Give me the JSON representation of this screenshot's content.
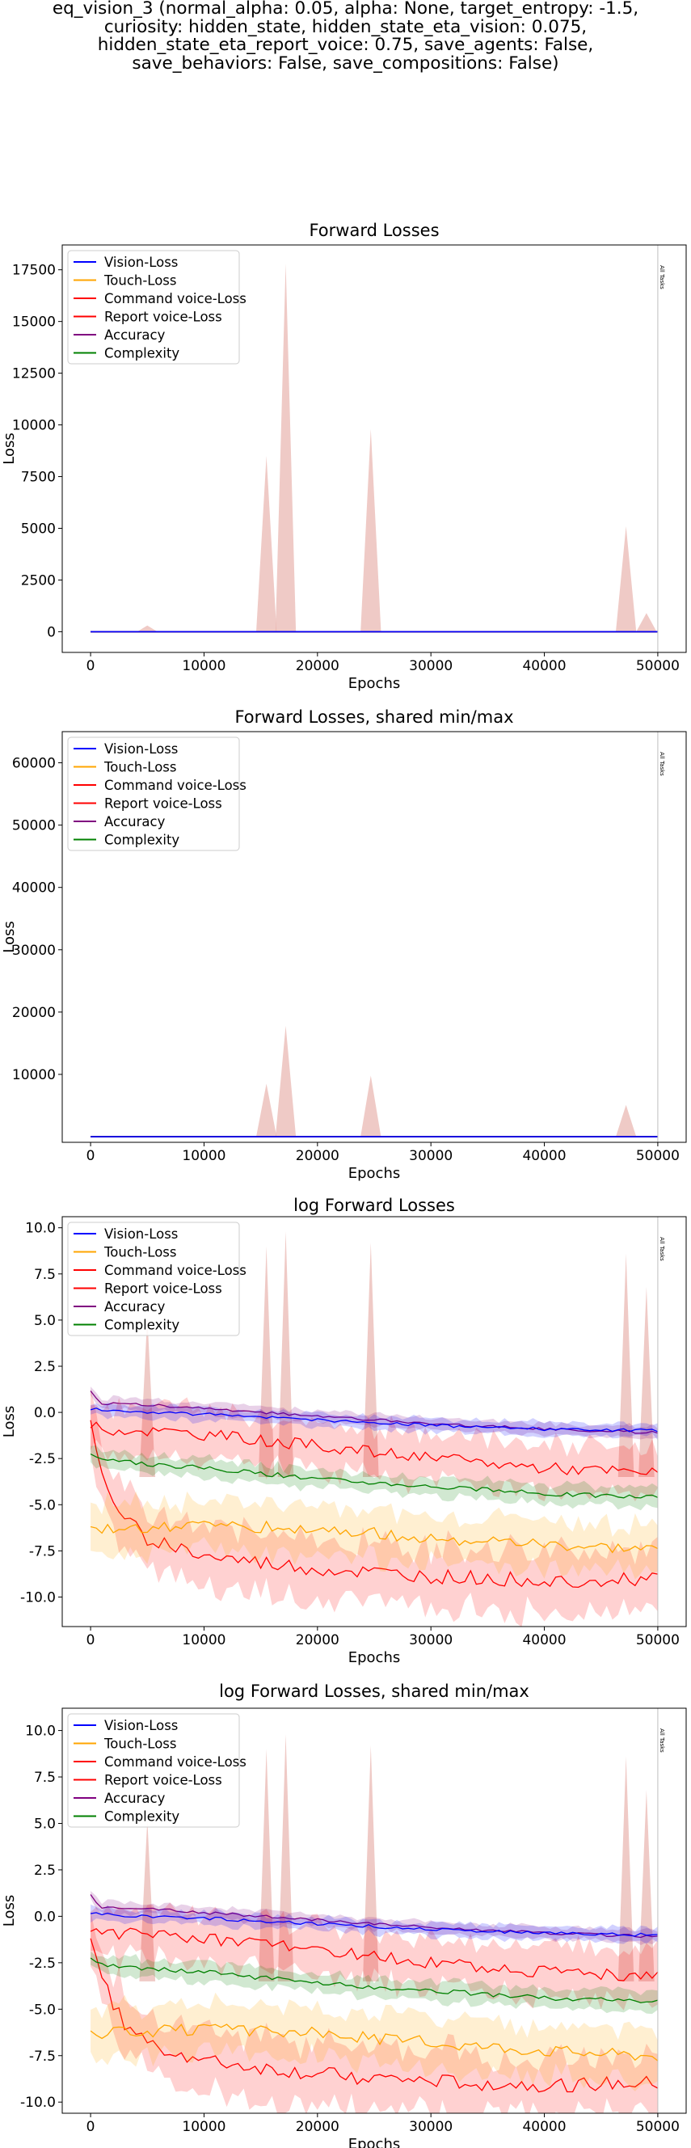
{
  "figure": {
    "title": "eq_vision_3 (normal_alpha: 0.05, alpha: None, target_entropy: -1.5,\ncuriosity: hidden_state, hidden_state_eta_vision: 0.075,\nhidden_state_eta_report_voice: 0.75, save_agents: False,\nsave_behaviors: False, save_compositions: False)"
  },
  "colors": {
    "vision": "#0000ff",
    "touch": "#ffa500",
    "command_voice": "#ff0000",
    "report_voice": "#ff0000",
    "accuracy": "#800080",
    "complexity": "#008000",
    "spikes": "#e8b4ae",
    "all_tasks_line": "#bfbfbf"
  },
  "chart_data": [
    {
      "type": "line",
      "title": "Forward Losses",
      "xlabel": "Epochs",
      "ylabel": "Loss",
      "xlim": [
        -2500,
        52500
      ],
      "ylim": [
        -1000,
        18700
      ],
      "xticks": [
        "0",
        "10000",
        "20000",
        "30000",
        "40000",
        "50000"
      ],
      "yticks": [
        "0",
        "2500",
        "5000",
        "7500",
        "10000",
        "12500",
        "15000",
        "17500"
      ],
      "legend": [
        "Vision-Loss",
        "Touch-Loss",
        "Command voice-Loss",
        "Report voice-Loss",
        "Accuracy",
        "Complexity"
      ],
      "legend_position": "upper left",
      "vline": {
        "x": 50000,
        "label": "All Tasks"
      },
      "series": [
        {
          "name": "Vision-Loss",
          "x": [
            0,
            50000
          ],
          "values": [
            0,
            0
          ]
        },
        {
          "name": "Touch-Loss",
          "x": [
            0,
            50000
          ],
          "values": [
            0,
            0
          ]
        },
        {
          "name": "Command voice-Loss",
          "x": [
            0,
            50000
          ],
          "values": [
            0,
            0
          ]
        },
        {
          "name": "Report voice-Loss",
          "x": [
            0,
            50000
          ],
          "values": [
            0,
            0
          ]
        },
        {
          "name": "Accuracy",
          "x": [
            0,
            50000
          ],
          "values": [
            0,
            0
          ]
        },
        {
          "name": "Complexity",
          "x": [
            0,
            50000
          ],
          "values": [
            0,
            0
          ]
        }
      ],
      "spikes": [
        {
          "x": 5000,
          "max": 300
        },
        {
          "x": 15500,
          "max": 8500
        },
        {
          "x": 17200,
          "max": 17800
        },
        {
          "x": 24700,
          "max": 9800
        },
        {
          "x": 47200,
          "max": 5100
        },
        {
          "x": 49000,
          "max": 900
        }
      ]
    },
    {
      "type": "line",
      "title": "Forward Losses, shared min/max",
      "xlabel": "Epochs",
      "ylabel": "Loss",
      "xlim": [
        -2500,
        52500
      ],
      "ylim": [
        -900,
        65000
      ],
      "xticks": [
        "0",
        "10000",
        "20000",
        "30000",
        "40000",
        "50000"
      ],
      "yticks": [
        "10000",
        "20000",
        "30000",
        "40000",
        "50000",
        "60000"
      ],
      "legend": [
        "Vision-Loss",
        "Touch-Loss",
        "Command voice-Loss",
        "Report voice-Loss",
        "Accuracy",
        "Complexity"
      ],
      "legend_position": "upper left",
      "vline": {
        "x": 50000,
        "label": "All Tasks"
      },
      "series": [
        {
          "name": "Vision-Loss",
          "x": [
            0,
            50000
          ],
          "values": [
            0,
            0
          ]
        },
        {
          "name": "Touch-Loss",
          "x": [
            0,
            50000
          ],
          "values": [
            0,
            0
          ]
        },
        {
          "name": "Command voice-Loss",
          "x": [
            0,
            50000
          ],
          "values": [
            0,
            0
          ]
        },
        {
          "name": "Report voice-Loss",
          "x": [
            0,
            50000
          ],
          "values": [
            0,
            0
          ]
        },
        {
          "name": "Accuracy",
          "x": [
            0,
            50000
          ],
          "values": [
            0,
            0
          ]
        },
        {
          "name": "Complexity",
          "x": [
            0,
            50000
          ],
          "values": [
            0,
            0
          ]
        }
      ],
      "spikes": [
        {
          "x": 15500,
          "max": 8500
        },
        {
          "x": 17200,
          "max": 17800
        },
        {
          "x": 24700,
          "max": 9800
        },
        {
          "x": 47200,
          "max": 5100
        }
      ]
    },
    {
      "type": "line",
      "title": "log Forward Losses",
      "xlabel": "Epochs",
      "ylabel": "Loss",
      "xlim": [
        -2500,
        52500
      ],
      "ylim": [
        -11.6,
        10.6
      ],
      "xticks": [
        "0",
        "10000",
        "20000",
        "30000",
        "40000",
        "50000"
      ],
      "yticks": [
        "-10.0",
        "-7.5",
        "-5.0",
        "-2.5",
        "0.0",
        "2.5",
        "5.0",
        "7.5",
        "10.0"
      ],
      "legend": [
        "Vision-Loss",
        "Touch-Loss",
        "Command voice-Loss",
        "Report voice-Loss",
        "Accuracy",
        "Complexity"
      ],
      "legend_position": "upper left",
      "vline": {
        "x": 50000,
        "label": "All Tasks"
      },
      "series": [
        {
          "name": "Vision-Loss",
          "x": [
            0,
            1000,
            5000,
            10000,
            20000,
            30000,
            40000,
            50000
          ],
          "values": [
            0.2,
            0.1,
            0.0,
            -0.1,
            -0.4,
            -0.7,
            -0.9,
            -1.0
          ]
        },
        {
          "name": "Touch-Loss",
          "x": [
            0,
            1000,
            5000,
            10000,
            20000,
            30000,
            40000,
            50000
          ],
          "values": [
            -6.0,
            -6.3,
            -6.2,
            -6.1,
            -6.3,
            -6.8,
            -7.2,
            -7.5
          ]
        },
        {
          "name": "Command voice-Loss",
          "x": [
            0,
            1000,
            5000,
            10000,
            20000,
            30000,
            40000,
            50000
          ],
          "values": [
            -0.8,
            -0.9,
            -1.0,
            -1.2,
            -1.8,
            -2.5,
            -3.0,
            -3.3
          ]
        },
        {
          "name": "Report voice-Loss",
          "x": [
            0,
            1000,
            3000,
            5000,
            10000,
            20000,
            30000,
            40000,
            50000
          ],
          "values": [
            -0.8,
            -3.5,
            -5.8,
            -6.8,
            -7.8,
            -8.5,
            -8.9,
            -9.1,
            -9.0
          ]
        },
        {
          "name": "Accuracy",
          "x": [
            0,
            1000,
            5000,
            10000,
            20000,
            30000,
            40000,
            50000
          ],
          "values": [
            1.1,
            0.5,
            0.4,
            0.2,
            -0.2,
            -0.6,
            -0.9,
            -1.1
          ]
        },
        {
          "name": "Complexity",
          "x": [
            0,
            1000,
            5000,
            10000,
            20000,
            30000,
            40000,
            50000
          ],
          "values": [
            -2.3,
            -2.6,
            -2.8,
            -3.0,
            -3.6,
            -4.0,
            -4.4,
            -4.6
          ]
        }
      ],
      "spikes": [
        {
          "x": 5000,
          "max": 5.2
        },
        {
          "x": 15500,
          "max": 9.0
        },
        {
          "x": 17200,
          "max": 9.8
        },
        {
          "x": 24700,
          "max": 9.2
        },
        {
          "x": 47200,
          "max": 8.6
        },
        {
          "x": 49000,
          "max": 6.8
        }
      ]
    },
    {
      "type": "line",
      "title": "log Forward Losses, shared min/max",
      "xlabel": "Epochs",
      "ylabel": "Loss",
      "xlim": [
        -2500,
        52500
      ],
      "ylim": [
        -10.6,
        11.2
      ],
      "xticks": [
        "0",
        "10000",
        "20000",
        "30000",
        "40000",
        "50000"
      ],
      "yticks": [
        "-10.0",
        "-7.5",
        "-5.0",
        "-2.5",
        "0.0",
        "2.5",
        "5.0",
        "7.5",
        "10.0"
      ],
      "legend": [
        "Vision-Loss",
        "Touch-Loss",
        "Command voice-Loss",
        "Report voice-Loss",
        "Accuracy",
        "Complexity"
      ],
      "legend_position": "upper left",
      "vline": {
        "x": 50000,
        "label": "All Tasks"
      },
      "series": [
        {
          "name": "Vision-Loss",
          "x": [
            0,
            1000,
            5000,
            10000,
            20000,
            30000,
            40000,
            50000
          ],
          "values": [
            0.2,
            0.1,
            0.0,
            -0.1,
            -0.4,
            -0.7,
            -0.9,
            -1.0
          ]
        },
        {
          "name": "Touch-Loss",
          "x": [
            0,
            1000,
            5000,
            10000,
            20000,
            30000,
            40000,
            50000
          ],
          "values": [
            -6.0,
            -6.3,
            -6.2,
            -6.1,
            -6.3,
            -6.8,
            -7.2,
            -7.5
          ]
        },
        {
          "name": "Command voice-Loss",
          "x": [
            0,
            1000,
            5000,
            10000,
            20000,
            30000,
            40000,
            50000
          ],
          "values": [
            -0.8,
            -0.9,
            -1.0,
            -1.2,
            -1.8,
            -2.5,
            -3.0,
            -3.3
          ]
        },
        {
          "name": "Report voice-Loss",
          "x": [
            0,
            1000,
            3000,
            5000,
            10000,
            20000,
            30000,
            40000,
            50000
          ],
          "values": [
            -0.8,
            -3.5,
            -5.8,
            -6.8,
            -7.8,
            -8.5,
            -8.9,
            -9.1,
            -9.0
          ]
        },
        {
          "name": "Accuracy",
          "x": [
            0,
            1000,
            5000,
            10000,
            20000,
            30000,
            40000,
            50000
          ],
          "values": [
            1.1,
            0.5,
            0.4,
            0.2,
            -0.2,
            -0.6,
            -0.9,
            -1.1
          ]
        },
        {
          "name": "Complexity",
          "x": [
            0,
            1000,
            5000,
            10000,
            20000,
            30000,
            40000,
            50000
          ],
          "values": [
            -2.3,
            -2.6,
            -2.8,
            -3.0,
            -3.6,
            -4.0,
            -4.4,
            -4.6
          ]
        }
      ],
      "spikes": [
        {
          "x": 5000,
          "max": 5.2
        },
        {
          "x": 15500,
          "max": 9.0
        },
        {
          "x": 17200,
          "max": 9.8
        },
        {
          "x": 24700,
          "max": 9.2
        },
        {
          "x": 47200,
          "max": 8.6
        },
        {
          "x": 49000,
          "max": 6.8
        }
      ]
    }
  ]
}
